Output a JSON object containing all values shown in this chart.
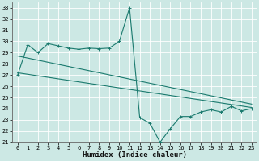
{
  "title": "",
  "xlabel": "Humidex (Indice chaleur)",
  "ylabel": "",
  "bg_color": "#cce8e4",
  "grid_color": "#ffffff",
  "line_color": "#1a7a6e",
  "xlim": [
    -0.5,
    23.5
  ],
  "ylim": [
    21,
    33.5
  ],
  "xticks": [
    0,
    1,
    2,
    3,
    4,
    5,
    6,
    7,
    8,
    9,
    10,
    11,
    12,
    13,
    14,
    15,
    16,
    17,
    18,
    19,
    20,
    21,
    22,
    23
  ],
  "yticks": [
    21,
    22,
    23,
    24,
    25,
    26,
    27,
    28,
    29,
    30,
    31,
    32,
    33
  ],
  "line1_x": [
    0,
    1,
    2,
    3,
    4,
    5,
    6,
    7,
    8,
    9,
    10,
    11,
    12,
    13,
    14,
    15,
    16,
    17,
    18,
    19,
    20,
    21,
    22,
    23
  ],
  "line1_y": [
    27.0,
    29.7,
    29.0,
    29.8,
    29.6,
    29.4,
    29.3,
    29.4,
    29.35,
    29.4,
    30.0,
    33.0,
    23.2,
    22.7,
    21.0,
    22.2,
    23.3,
    23.3,
    23.7,
    23.9,
    23.7,
    24.2,
    23.8,
    24.0
  ],
  "line2_x": [
    0,
    23
  ],
  "line2_y": [
    27.2,
    24.1
  ],
  "line3_x": [
    0,
    23
  ],
  "line3_y": [
    28.7,
    24.4
  ],
  "tick_fontsize": 5.0,
  "xlabel_fontsize": 6.5
}
